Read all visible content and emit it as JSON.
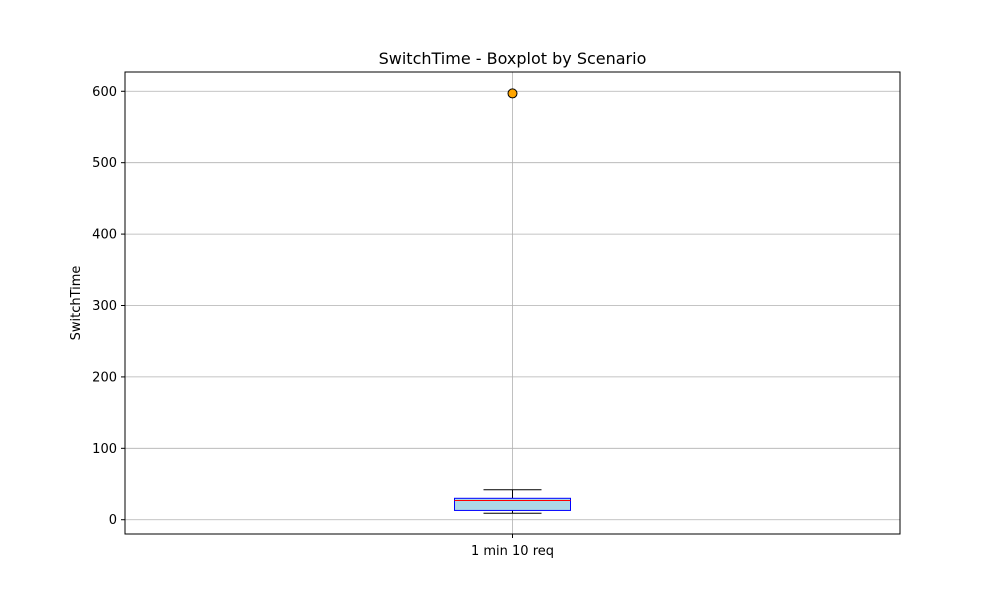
{
  "chart_data": {
    "type": "boxplot",
    "title": "SwitchTime - Boxplot by Scenario",
    "xlabel": "",
    "ylabel": "SwitchTime",
    "categories": [
      "1 min 10 req"
    ],
    "boxes": [
      {
        "category": "1 min 10 req",
        "whisker_low": 9,
        "q1": 13,
        "median": 27,
        "q3": 30,
        "whisker_high": 42,
        "outliers": [
          597
        ]
      }
    ],
    "yticks": [
      0,
      100,
      200,
      300,
      400,
      500,
      600
    ],
    "ylim": [
      -20,
      627
    ],
    "grid": true,
    "colors": {
      "box_fill": "#add8e6",
      "box_edge": "#0000ff",
      "median": "#ff0000",
      "whisker": "#000000",
      "outlier_fill": "#ffa500",
      "grid": "#b0b0b0"
    }
  }
}
